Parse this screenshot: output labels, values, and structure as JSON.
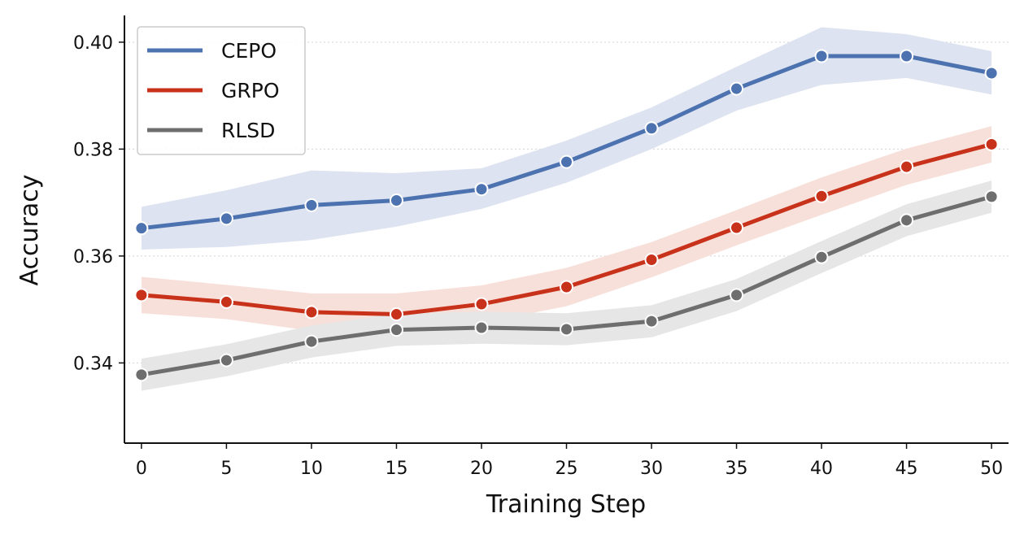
{
  "chart_data": {
    "type": "line",
    "title": "",
    "xlabel": "Training Step",
    "ylabel": "Accuracy",
    "x": [
      0,
      5,
      10,
      15,
      20,
      25,
      30,
      35,
      40,
      45,
      50
    ],
    "xticks": [
      "0",
      "5",
      "10",
      "15",
      "20",
      "25",
      "30",
      "35",
      "40",
      "45",
      "50"
    ],
    "yticks": [
      0.34,
      0.36,
      0.38,
      0.4
    ],
    "ytick_labels": [
      "0.34",
      "0.36",
      "0.38",
      "0.40"
    ],
    "xlim": [
      -1,
      51
    ],
    "ylim": [
      0.325,
      0.405
    ],
    "grid": "horizontal-dotted",
    "legend_position": "top-left",
    "series": [
      {
        "name": "CEPO",
        "color": "#4c72b0",
        "band_color": "#dde3f0",
        "values": [
          0.3652,
          0.367,
          0.3695,
          0.3704,
          0.3725,
          0.3776,
          0.3839,
          0.3913,
          0.3974,
          0.3974,
          0.3942
        ],
        "lower": [
          0.3612,
          0.3617,
          0.363,
          0.3655,
          0.3688,
          0.3737,
          0.38,
          0.3872,
          0.392,
          0.3933,
          0.3902
        ],
        "upper": [
          0.3692,
          0.3723,
          0.376,
          0.3755,
          0.3764,
          0.3816,
          0.3878,
          0.3954,
          0.4028,
          0.4015,
          0.3983
        ]
      },
      {
        "name": "GRPO",
        "color": "#c8321a",
        "band_color": "#f8e0da",
        "values": [
          0.3527,
          0.3514,
          0.3495,
          0.3491,
          0.351,
          0.3542,
          0.3593,
          0.3653,
          0.3712,
          0.3767,
          0.3809
        ],
        "lower": [
          0.3493,
          0.3482,
          0.346,
          0.3452,
          0.3475,
          0.3506,
          0.356,
          0.362,
          0.3677,
          0.3733,
          0.3775
        ],
        "upper": [
          0.3561,
          0.3546,
          0.353,
          0.353,
          0.3545,
          0.3578,
          0.3626,
          0.3686,
          0.3747,
          0.3801,
          0.3843
        ]
      },
      {
        "name": "RLSD",
        "color": "#6e6e6e",
        "band_color": "#e6e6e6",
        "values": [
          0.3378,
          0.3405,
          0.344,
          0.3462,
          0.3466,
          0.3463,
          0.3478,
          0.3527,
          0.3598,
          0.3667,
          0.3711
        ],
        "lower": [
          0.3348,
          0.3375,
          0.341,
          0.3432,
          0.3436,
          0.3433,
          0.3448,
          0.3497,
          0.3568,
          0.3637,
          0.3681
        ],
        "upper": [
          0.3408,
          0.3435,
          0.347,
          0.3492,
          0.3496,
          0.3493,
          0.3508,
          0.3557,
          0.3628,
          0.3697,
          0.3741
        ]
      }
    ]
  }
}
